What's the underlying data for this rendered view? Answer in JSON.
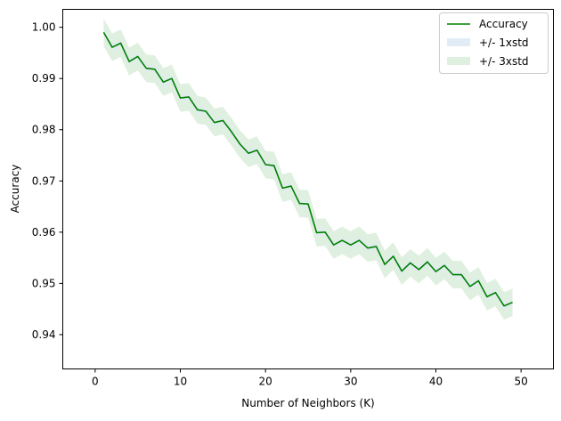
{
  "colors": {
    "line": "#008000",
    "band1": "#dfeaf6",
    "band3": "#008000",
    "axis": "#000000"
  },
  "chart_data": {
    "type": "line",
    "title": "",
    "xlabel": "Number of Neighbors (K)",
    "ylabel": "Accuracy",
    "xlim": [
      -3.8,
      53.8
    ],
    "ylim": [
      0.9333,
      1.0035
    ],
    "x_ticks": [
      0,
      10,
      20,
      30,
      40,
      50
    ],
    "x_tick_labels": [
      "0",
      "10",
      "20",
      "30",
      "40",
      "50"
    ],
    "y_ticks": [
      0.94,
      0.95,
      0.96,
      0.97,
      0.98,
      0.99,
      1.0
    ],
    "y_tick_labels": [
      "0.94",
      "0.95",
      "0.96",
      "0.97",
      "0.98",
      "0.99",
      "1.00"
    ],
    "grid": false,
    "legend_position": "top-right",
    "legend": [
      {
        "label": "Accuracy",
        "kind": "line"
      },
      {
        "label": "+/- 1xstd",
        "kind": "band1"
      },
      {
        "label": "+/- 3xstd",
        "kind": "band3"
      }
    ],
    "x": [
      1,
      2,
      3,
      4,
      5,
      6,
      7,
      8,
      9,
      10,
      11,
      12,
      13,
      14,
      15,
      16,
      17,
      18,
      19,
      20,
      21,
      22,
      23,
      24,
      25,
      26,
      27,
      28,
      29,
      30,
      31,
      32,
      33,
      34,
      35,
      36,
      37,
      38,
      39,
      40,
      41,
      42,
      43,
      44,
      45,
      46,
      47,
      48,
      49
    ],
    "series": [
      {
        "name": "Accuracy",
        "values": [
          0.999,
          0.9961,
          0.9969,
          0.9933,
          0.9943,
          0.992,
          0.9918,
          0.9893,
          0.99,
          0.9862,
          0.9864,
          0.9839,
          0.9836,
          0.9814,
          0.9818,
          0.9796,
          0.9772,
          0.9754,
          0.976,
          0.9732,
          0.973,
          0.9686,
          0.969,
          0.9656,
          0.9655,
          0.9599,
          0.96,
          0.9575,
          0.9584,
          0.9575,
          0.9584,
          0.9569,
          0.9572,
          0.9537,
          0.9553,
          0.9524,
          0.954,
          0.9527,
          0.9542,
          0.9523,
          0.9535,
          0.9517,
          0.9517,
          0.9494,
          0.9505,
          0.9474,
          0.9482,
          0.9456,
          0.9463
        ],
        "std_band_1x": 0.0007,
        "std_band_3x": 0.0027
      }
    ]
  }
}
